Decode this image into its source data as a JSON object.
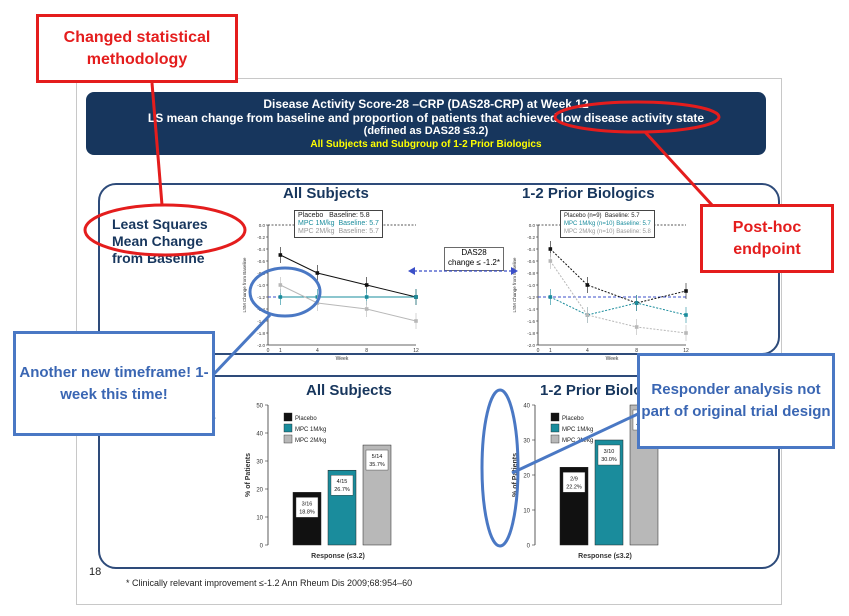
{
  "slide": {
    "banner": {
      "line1": "Disease Activity Score-28 –CRP (DAS28-CRP) at Week 12",
      "line2": "LS mean change from baseline and proportion of patients that achieved low disease activity state",
      "line3": "(defined as DAS28 ≤3.2)",
      "line4": "All Subjects  and Subgroup of 1-2 Prior Biologics"
    },
    "top_panel": {
      "left_title": "All Subjects",
      "right_title": "1-2 Prior Biologics",
      "ls_label_1": "Least Squares",
      "ls_label_2": "Mean Change",
      "ls_label_3": "from Baseline",
      "left_legend": [
        "Placebo",
        "MPC 1M/kg",
        "MPC 2M/kg"
      ],
      "left_baseline": [
        "Baseline: 5.8",
        "Baseline: 5.7",
        "Baseline: 5.7"
      ],
      "right_legend": [
        "Placebo (n=9)",
        "MPC 1M/kg (n=10)",
        "MPC 2M/kg (n=10)"
      ],
      "right_baseline": [
        "Baseline: 5.7",
        "Baseline: 5.7",
        "Baseline: 5.8"
      ],
      "y_axis_label": "LSM Change from Baseline",
      "x_axis_label": "Week",
      "x_ticks": [
        "0",
        "1",
        "4",
        "8",
        "12"
      ],
      "y_ticks": [
        "0.0",
        "-0.2",
        "-0.4",
        "-0.6",
        "-0.8",
        "-1.0",
        "-1.2",
        "-1.4",
        "-1.6",
        "-1.8",
        "-2.0"
      ],
      "das_box_1": "DAS28",
      "das_box_2": "change ≤ -1.2*"
    },
    "bottom_panel": {
      "left_title": "All Subjects",
      "right_title": "1-2 Prior Biologics",
      "partial_label": "2",
      "y_axis_label": "% of Patients",
      "x_axis_label": "Response (≤3.2)",
      "legend": [
        "Placebo",
        "MPC 1M/kg",
        "MPC 2M/kg"
      ],
      "left_y_ticks": [
        "50",
        "40",
        "30",
        "20",
        "10",
        "0"
      ],
      "right_y_ticks": [
        "40",
        "30",
        "20",
        "10",
        "0"
      ]
    },
    "page_number": "18",
    "footnote": "* Clinically relevant improvement ≤-1.2  Ann Rheum Dis 2009;68:954–60"
  },
  "callouts": {
    "changed_methodology": "Changed statistical methodology",
    "post_hoc": "Post-hoc endpoint",
    "new_timeframe": "Another new timeframe! 1-week this time!",
    "responder": "Responder analysis not part of original trial design"
  },
  "colors": {
    "navy": "#17365d",
    "red": "#e41d1d",
    "blue": "#4a78c4",
    "placebo": "#111111",
    "mpc1": "#1a8c9c",
    "mpc2": "#b8b8b8"
  },
  "chart_data": [
    {
      "type": "line",
      "title": "All Subjects",
      "xlabel": "Week",
      "ylabel": "LSM Change from Baseline",
      "x": [
        1,
        4,
        8,
        12
      ],
      "ylim": [
        -2.0,
        0.0
      ],
      "series": [
        {
          "name": "Placebo",
          "values": [
            -0.5,
            -0.8,
            -1.0,
            -1.2
          ]
        },
        {
          "name": "MPC 1M/kg",
          "values": [
            -1.2,
            -1.2,
            -1.2,
            -1.2
          ]
        },
        {
          "name": "MPC 2M/kg",
          "values": [
            -1.0,
            -1.3,
            -1.4,
            -1.6
          ]
        }
      ]
    },
    {
      "type": "line",
      "title": "1-2 Prior Biologics",
      "xlabel": "Week",
      "ylabel": "LSM Change from Baseline",
      "x": [
        1,
        4,
        8,
        12
      ],
      "ylim": [
        -2.0,
        0.0
      ],
      "series": [
        {
          "name": "Placebo (n=9)",
          "values": [
            -0.4,
            -1.0,
            -1.3,
            -1.1
          ]
        },
        {
          "name": "MPC 1M/kg (n=10)",
          "values": [
            -1.2,
            -1.5,
            -1.3,
            -1.5
          ]
        },
        {
          "name": "MPC 2M/kg (n=10)",
          "values": [
            -0.6,
            -1.5,
            -1.7,
            -1.8
          ]
        }
      ]
    },
    {
      "type": "bar",
      "title": "All Subjects",
      "xlabel": "Response (≤3.2)",
      "ylabel": "% of Patients",
      "ylim": [
        0,
        50
      ],
      "categories": [
        "Placebo",
        "MPC 1M/kg",
        "MPC 2M/kg"
      ],
      "values": [
        18.8,
        26.7,
        35.7
      ],
      "labels": [
        [
          "3/16",
          "18.8%"
        ],
        [
          "4/15",
          "26.7%"
        ],
        [
          "5/14",
          "35.7%"
        ]
      ]
    },
    {
      "type": "bar",
      "title": "1-2 Prior Biologics",
      "xlabel": "Response (≤3.2)",
      "ylabel": "% of Patients",
      "ylim": [
        0,
        40
      ],
      "categories": [
        "Placebo",
        "MPC 1M/kg",
        "MPC 2M/kg"
      ],
      "values": [
        22.2,
        30.0,
        40.0
      ],
      "labels": [
        [
          "2/9",
          "22.2%"
        ],
        [
          "3/10",
          "30.0%"
        ],
        [
          "4/10",
          "40.0%"
        ]
      ]
    }
  ]
}
